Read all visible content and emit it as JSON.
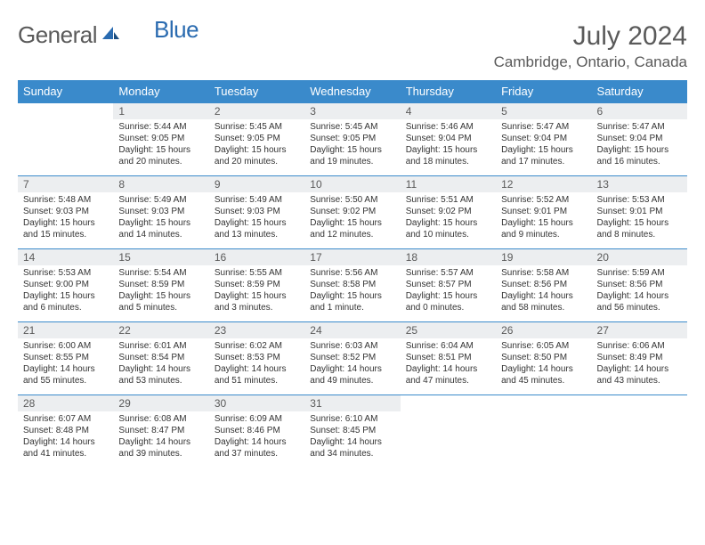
{
  "logo": {
    "word1": "General",
    "word2": "Blue"
  },
  "header": {
    "month": "July 2024",
    "location": "Cambridge, Ontario, Canada"
  },
  "colors": {
    "accent": "#3a8acb",
    "header_cell": "#eceef0",
    "text": "#333333",
    "muted": "#5a5a5a"
  },
  "columns": [
    "Sunday",
    "Monday",
    "Tuesday",
    "Wednesday",
    "Thursday",
    "Friday",
    "Saturday"
  ],
  "weeks": [
    [
      null,
      {
        "n": "1",
        "sr": "Sunrise: 5:44 AM",
        "ss": "Sunset: 9:05 PM",
        "d1": "Daylight: 15 hours",
        "d2": "and 20 minutes."
      },
      {
        "n": "2",
        "sr": "Sunrise: 5:45 AM",
        "ss": "Sunset: 9:05 PM",
        "d1": "Daylight: 15 hours",
        "d2": "and 20 minutes."
      },
      {
        "n": "3",
        "sr": "Sunrise: 5:45 AM",
        "ss": "Sunset: 9:05 PM",
        "d1": "Daylight: 15 hours",
        "d2": "and 19 minutes."
      },
      {
        "n": "4",
        "sr": "Sunrise: 5:46 AM",
        "ss": "Sunset: 9:04 PM",
        "d1": "Daylight: 15 hours",
        "d2": "and 18 minutes."
      },
      {
        "n": "5",
        "sr": "Sunrise: 5:47 AM",
        "ss": "Sunset: 9:04 PM",
        "d1": "Daylight: 15 hours",
        "d2": "and 17 minutes."
      },
      {
        "n": "6",
        "sr": "Sunrise: 5:47 AM",
        "ss": "Sunset: 9:04 PM",
        "d1": "Daylight: 15 hours",
        "d2": "and 16 minutes."
      }
    ],
    [
      {
        "n": "7",
        "sr": "Sunrise: 5:48 AM",
        "ss": "Sunset: 9:03 PM",
        "d1": "Daylight: 15 hours",
        "d2": "and 15 minutes."
      },
      {
        "n": "8",
        "sr": "Sunrise: 5:49 AM",
        "ss": "Sunset: 9:03 PM",
        "d1": "Daylight: 15 hours",
        "d2": "and 14 minutes."
      },
      {
        "n": "9",
        "sr": "Sunrise: 5:49 AM",
        "ss": "Sunset: 9:03 PM",
        "d1": "Daylight: 15 hours",
        "d2": "and 13 minutes."
      },
      {
        "n": "10",
        "sr": "Sunrise: 5:50 AM",
        "ss": "Sunset: 9:02 PM",
        "d1": "Daylight: 15 hours",
        "d2": "and 12 minutes."
      },
      {
        "n": "11",
        "sr": "Sunrise: 5:51 AM",
        "ss": "Sunset: 9:02 PM",
        "d1": "Daylight: 15 hours",
        "d2": "and 10 minutes."
      },
      {
        "n": "12",
        "sr": "Sunrise: 5:52 AM",
        "ss": "Sunset: 9:01 PM",
        "d1": "Daylight: 15 hours",
        "d2": "and 9 minutes."
      },
      {
        "n": "13",
        "sr": "Sunrise: 5:53 AM",
        "ss": "Sunset: 9:01 PM",
        "d1": "Daylight: 15 hours",
        "d2": "and 8 minutes."
      }
    ],
    [
      {
        "n": "14",
        "sr": "Sunrise: 5:53 AM",
        "ss": "Sunset: 9:00 PM",
        "d1": "Daylight: 15 hours",
        "d2": "and 6 minutes."
      },
      {
        "n": "15",
        "sr": "Sunrise: 5:54 AM",
        "ss": "Sunset: 8:59 PM",
        "d1": "Daylight: 15 hours",
        "d2": "and 5 minutes."
      },
      {
        "n": "16",
        "sr": "Sunrise: 5:55 AM",
        "ss": "Sunset: 8:59 PM",
        "d1": "Daylight: 15 hours",
        "d2": "and 3 minutes."
      },
      {
        "n": "17",
        "sr": "Sunrise: 5:56 AM",
        "ss": "Sunset: 8:58 PM",
        "d1": "Daylight: 15 hours",
        "d2": "and 1 minute."
      },
      {
        "n": "18",
        "sr": "Sunrise: 5:57 AM",
        "ss": "Sunset: 8:57 PM",
        "d1": "Daylight: 15 hours",
        "d2": "and 0 minutes."
      },
      {
        "n": "19",
        "sr": "Sunrise: 5:58 AM",
        "ss": "Sunset: 8:56 PM",
        "d1": "Daylight: 14 hours",
        "d2": "and 58 minutes."
      },
      {
        "n": "20",
        "sr": "Sunrise: 5:59 AM",
        "ss": "Sunset: 8:56 PM",
        "d1": "Daylight: 14 hours",
        "d2": "and 56 minutes."
      }
    ],
    [
      {
        "n": "21",
        "sr": "Sunrise: 6:00 AM",
        "ss": "Sunset: 8:55 PM",
        "d1": "Daylight: 14 hours",
        "d2": "and 55 minutes."
      },
      {
        "n": "22",
        "sr": "Sunrise: 6:01 AM",
        "ss": "Sunset: 8:54 PM",
        "d1": "Daylight: 14 hours",
        "d2": "and 53 minutes."
      },
      {
        "n": "23",
        "sr": "Sunrise: 6:02 AM",
        "ss": "Sunset: 8:53 PM",
        "d1": "Daylight: 14 hours",
        "d2": "and 51 minutes."
      },
      {
        "n": "24",
        "sr": "Sunrise: 6:03 AM",
        "ss": "Sunset: 8:52 PM",
        "d1": "Daylight: 14 hours",
        "d2": "and 49 minutes."
      },
      {
        "n": "25",
        "sr": "Sunrise: 6:04 AM",
        "ss": "Sunset: 8:51 PM",
        "d1": "Daylight: 14 hours",
        "d2": "and 47 minutes."
      },
      {
        "n": "26",
        "sr": "Sunrise: 6:05 AM",
        "ss": "Sunset: 8:50 PM",
        "d1": "Daylight: 14 hours",
        "d2": "and 45 minutes."
      },
      {
        "n": "27",
        "sr": "Sunrise: 6:06 AM",
        "ss": "Sunset: 8:49 PM",
        "d1": "Daylight: 14 hours",
        "d2": "and 43 minutes."
      }
    ],
    [
      {
        "n": "28",
        "sr": "Sunrise: 6:07 AM",
        "ss": "Sunset: 8:48 PM",
        "d1": "Daylight: 14 hours",
        "d2": "and 41 minutes."
      },
      {
        "n": "29",
        "sr": "Sunrise: 6:08 AM",
        "ss": "Sunset: 8:47 PM",
        "d1": "Daylight: 14 hours",
        "d2": "and 39 minutes."
      },
      {
        "n": "30",
        "sr": "Sunrise: 6:09 AM",
        "ss": "Sunset: 8:46 PM",
        "d1": "Daylight: 14 hours",
        "d2": "and 37 minutes."
      },
      {
        "n": "31",
        "sr": "Sunrise: 6:10 AM",
        "ss": "Sunset: 8:45 PM",
        "d1": "Daylight: 14 hours",
        "d2": "and 34 minutes."
      },
      null,
      null,
      null
    ]
  ]
}
